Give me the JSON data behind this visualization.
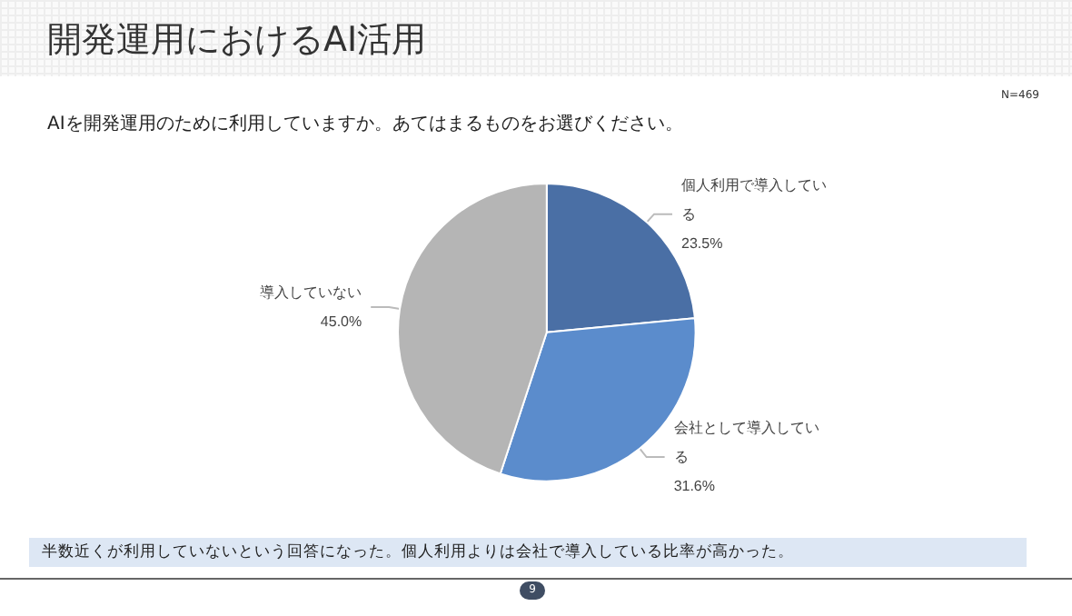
{
  "chart_data": {
    "type": "pie",
    "title": "開発運用におけるAI活用",
    "subtitle": "AIを開発運用のために利用していますか。あてはまるものをお選びください。",
    "categories": [
      "個人利用で導入している",
      "会社として導入している",
      "導入していない"
    ],
    "values": [
      23.5,
      31.6,
      45.0
    ],
    "value_labels": [
      "23.5%",
      "31.6%",
      "45.0%"
    ],
    "colors": [
      "#4a6fa5",
      "#5b8ccc",
      "#b5b5b5"
    ],
    "annotations": [
      "N=469",
      "半数近くが利用していないという回答になった。個人利用よりは会社で導入している比率が高かった。",
      "9"
    ]
  }
}
